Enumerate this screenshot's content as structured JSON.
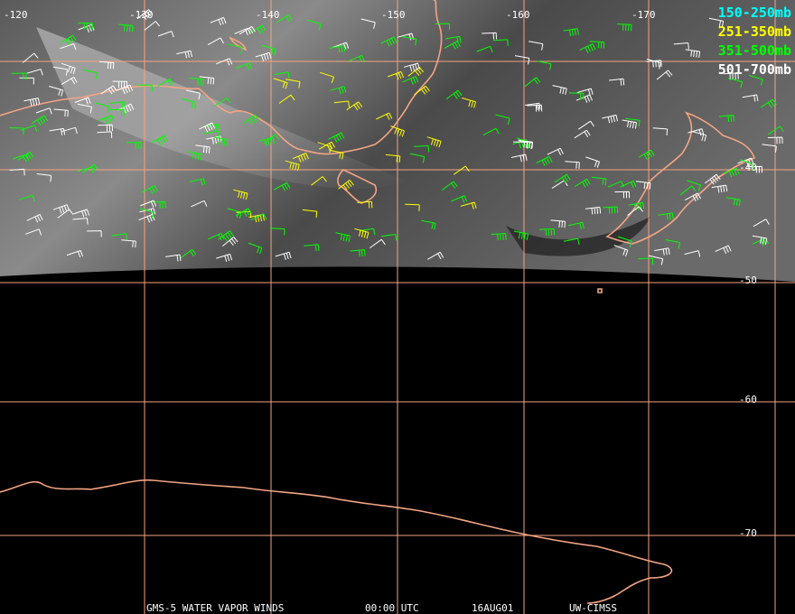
{
  "map": {
    "longitude_labels": [
      "-120",
      "-130",
      "-140",
      "-150",
      "-160",
      "-170"
    ],
    "latitude_labels": [
      "-40",
      "-50",
      "-60",
      "-70"
    ],
    "legend": [
      {
        "label": "150-250mb",
        "color": "#00ffff"
      },
      {
        "label": "251-350mb",
        "color": "#ffff00"
      },
      {
        "label": "351-500mb",
        "color": "#00ff00"
      },
      {
        "label": "501-700mb",
        "color": "#ffffff"
      }
    ],
    "footer": [
      "GMS-5 WATER VAPOR WINDS",
      "00:00 UTC",
      "16AUG01",
      "UW-CIMSS"
    ]
  }
}
